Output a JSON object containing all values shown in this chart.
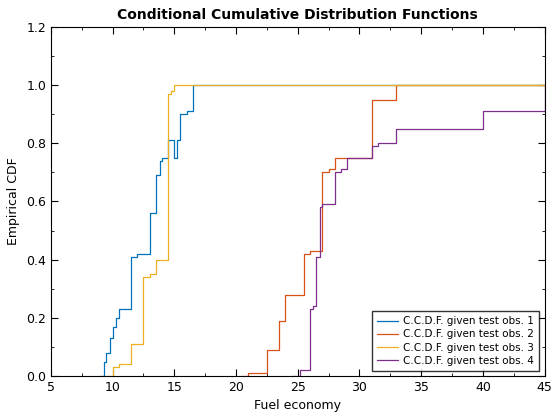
{
  "title": "Conditional Cumulative Distribution Functions",
  "xlabel": "Fuel economy",
  "ylabel": "Empirical CDF",
  "xlim": [
    5,
    45
  ],
  "ylim": [
    0,
    1.2
  ],
  "xticks": [
    5,
    10,
    15,
    20,
    25,
    30,
    35,
    40,
    45
  ],
  "yticks": [
    0,
    0.2,
    0.4,
    0.6,
    0.8,
    1.0,
    1.2
  ],
  "legend_labels": [
    "C.C.D.F. given test obs. 1",
    "C.C.D.F. given test obs. 2",
    "C.C.D.F. given test obs. 3",
    "C.C.D.F. given test obs. 4"
  ],
  "colors": [
    "#0072BD",
    "#D95319",
    "#EDB120",
    "#7E2F8E"
  ],
  "line1_x": [
    9.0,
    9.3,
    9.5,
    9.8,
    10.0,
    10.3,
    10.5,
    10.8,
    11.0,
    11.2,
    11.5,
    11.7,
    12.0,
    12.2,
    12.5,
    12.7,
    13.0,
    13.2,
    13.5,
    13.8,
    14.0,
    14.3,
    14.5,
    14.8,
    15.0,
    15.2,
    15.5,
    16.0,
    16.5,
    17.0,
    45.0
  ],
  "line1_y": [
    0.0,
    0.05,
    0.08,
    0.13,
    0.17,
    0.2,
    0.23,
    0.23,
    0.23,
    0.23,
    0.41,
    0.41,
    0.42,
    0.42,
    0.42,
    0.42,
    0.56,
    0.56,
    0.69,
    0.74,
    0.75,
    0.75,
    0.81,
    0.81,
    0.75,
    0.81,
    0.9,
    0.91,
    1.0,
    1.0,
    1.0
  ],
  "line2_x": [
    20.5,
    21.0,
    21.5,
    22.0,
    22.5,
    23.0,
    23.5,
    24.0,
    24.5,
    25.0,
    25.5,
    26.0,
    26.5,
    27.0,
    27.5,
    28.0,
    29.0,
    30.0,
    31.0,
    32.0,
    32.5,
    33.0,
    45.0
  ],
  "line2_y": [
    0.0,
    0.01,
    0.01,
    0.01,
    0.09,
    0.09,
    0.19,
    0.28,
    0.28,
    0.28,
    0.42,
    0.43,
    0.43,
    0.7,
    0.71,
    0.75,
    0.75,
    0.75,
    0.95,
    0.95,
    0.95,
    1.0,
    1.0
  ],
  "line3_x": [
    9.5,
    10.0,
    10.5,
    11.0,
    11.5,
    12.0,
    12.5,
    13.0,
    13.5,
    14.0,
    14.3,
    14.5,
    14.7,
    15.0,
    15.5,
    16.0,
    17.0,
    45.0
  ],
  "line3_y": [
    0.0,
    0.03,
    0.04,
    0.04,
    0.11,
    0.11,
    0.34,
    0.35,
    0.4,
    0.4,
    0.4,
    0.97,
    0.98,
    1.0,
    1.0,
    1.0,
    1.0,
    1.0
  ],
  "line4_x": [
    24.5,
    25.0,
    25.2,
    25.5,
    26.0,
    26.2,
    26.5,
    26.8,
    27.0,
    27.2,
    27.5,
    28.0,
    28.5,
    29.0,
    29.5,
    30.0,
    30.5,
    31.0,
    31.5,
    32.0,
    33.0,
    34.0,
    35.0,
    36.0,
    37.0,
    38.0,
    39.0,
    40.0,
    41.0,
    43.0,
    45.0
  ],
  "line4_y": [
    0.0,
    0.0,
    0.02,
    0.02,
    0.23,
    0.24,
    0.41,
    0.58,
    0.59,
    0.59,
    0.59,
    0.7,
    0.71,
    0.75,
    0.75,
    0.75,
    0.75,
    0.79,
    0.8,
    0.8,
    0.85,
    0.85,
    0.85,
    0.85,
    0.85,
    0.85,
    0.85,
    0.91,
    0.91,
    0.91,
    1.0
  ]
}
